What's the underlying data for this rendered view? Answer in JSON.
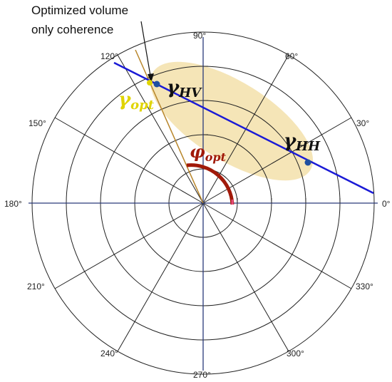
{
  "callout": {
    "line1": "Optimized volume",
    "line2": "only coherence"
  },
  "angle_labels": [
    "0°",
    "30°",
    "60°",
    "90°",
    "120°",
    "150°",
    "180°",
    "210°",
    "240°",
    "270°",
    "300°",
    "330°"
  ],
  "symbols": {
    "gamma_hv": {
      "base": "γ",
      "sub": "HV"
    },
    "gamma_hh": {
      "base": "γ",
      "sub": "HH"
    },
    "gamma_opt": {
      "base": "γ",
      "sub": "opt"
    },
    "phi_opt": {
      "base": "φ",
      "sub": "opt"
    }
  },
  "colors": {
    "axis": "#2a3a7a",
    "grid": "#222222",
    "coherence_line": "#1a1ad6",
    "point": "#1f4fa0",
    "region": "#f3dfa5",
    "phase_arc": "#a11a0a",
    "opt_line": "#b8862b",
    "gamma_opt_text": "#e0d400",
    "phi_text": "#a11a0a"
  }
}
